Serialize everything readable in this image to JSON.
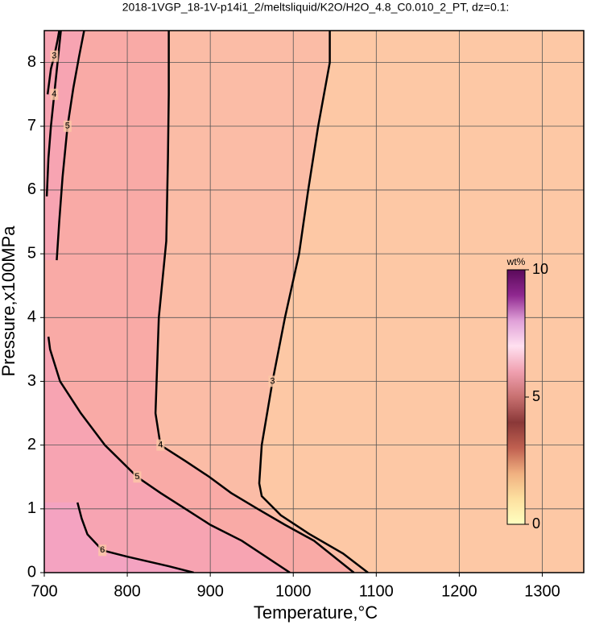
{
  "chart_data": {
    "type": "contour",
    "title": "2018-1VGP_18-1V-p14i1_2/meltsliquid/K2O/H2O_4.8_C0.010_2_PT, dz=0.1:",
    "x_label": "Temperature,°C",
    "y_label": "Pressure,x100MPa",
    "xlim": [
      700,
      1350
    ],
    "ylim": [
      0,
      8.5
    ],
    "xticks": [
      700,
      800,
      900,
      1000,
      1100,
      1200,
      1300
    ],
    "yticks": [
      0,
      1,
      2,
      3,
      4,
      5,
      6,
      7,
      8
    ],
    "grid": true,
    "background": "#fdc8a5",
    "contours": [
      {
        "level": 3,
        "fill": "#fbbca6",
        "T": [
          1090,
          1060,
          1020,
          985,
          962,
          959,
          962,
          975,
          990,
          1007,
          1018,
          1030,
          1044,
          1044
        ],
        "P": [
          0,
          0.3,
          0.6,
          0.9,
          1.2,
          1.4,
          2.0,
          3.0,
          4.0,
          5.0,
          6.0,
          7.0,
          8.0,
          8.5
        ]
      },
      {
        "level": 4,
        "fill": "#f9aaa6",
        "T": [
          1073,
          1025,
          990,
          957,
          925,
          899,
          870,
          840,
          834,
          838,
          847,
          849,
          850,
          850
        ],
        "P": [
          0,
          0.5,
          0.75,
          1.0,
          1.25,
          1.5,
          1.75,
          2.0,
          2.5,
          4.0,
          5.2,
          6.5,
          7.5,
          8.5
        ]
      },
      {
        "level": 5,
        "fill": "#f7a4b2",
        "T": [
          996,
          938,
          900,
          870,
          840,
          812,
          773,
          744,
          719,
          707,
          705
        ],
        "P": [
          0,
          0.5,
          0.75,
          1.0,
          1.25,
          1.5,
          2.0,
          2.5,
          3.0,
          3.5,
          3.7
        ]
      },
      {
        "level": 5,
        "fill": "#f7a4b2",
        "T": [
          715,
          718,
          722,
          728,
          735,
          742,
          748
        ],
        "P": [
          4.9,
          5.5,
          6.2,
          7.0,
          7.6,
          8.1,
          8.5
        ]
      },
      {
        "level": 6,
        "fill": "#f4a3c1",
        "T": [
          880,
          850,
          800,
          770,
          752,
          745,
          740
        ],
        "P": [
          0,
          0.1,
          0.25,
          0.35,
          0.6,
          0.85,
          1.1
        ]
      },
      {
        "level": 4,
        "T": [
          703,
          705,
          708,
          712,
          716,
          720
        ],
        "P": [
          5.9,
          6.5,
          7.0,
          7.5,
          8.0,
          8.5
        ]
      },
      {
        "level": 3,
        "T": [
          704,
          708,
          712,
          716,
          718
        ],
        "P": [
          7.5,
          7.9,
          8.1,
          8.35,
          8.5
        ]
      }
    ],
    "colorbar": {
      "label": "wt%",
      "ticks": [
        0,
        5,
        10
      ],
      "range": [
        0,
        10
      ],
      "colors": [
        "#ffffc0",
        "#fde0a0",
        "#f0b080",
        "#c06050",
        "#8a3838",
        "#c87070",
        "#f0a0b0",
        "#ffe0f0",
        "#e0a0d8",
        "#902890",
        "#5a0a5a"
      ]
    }
  }
}
